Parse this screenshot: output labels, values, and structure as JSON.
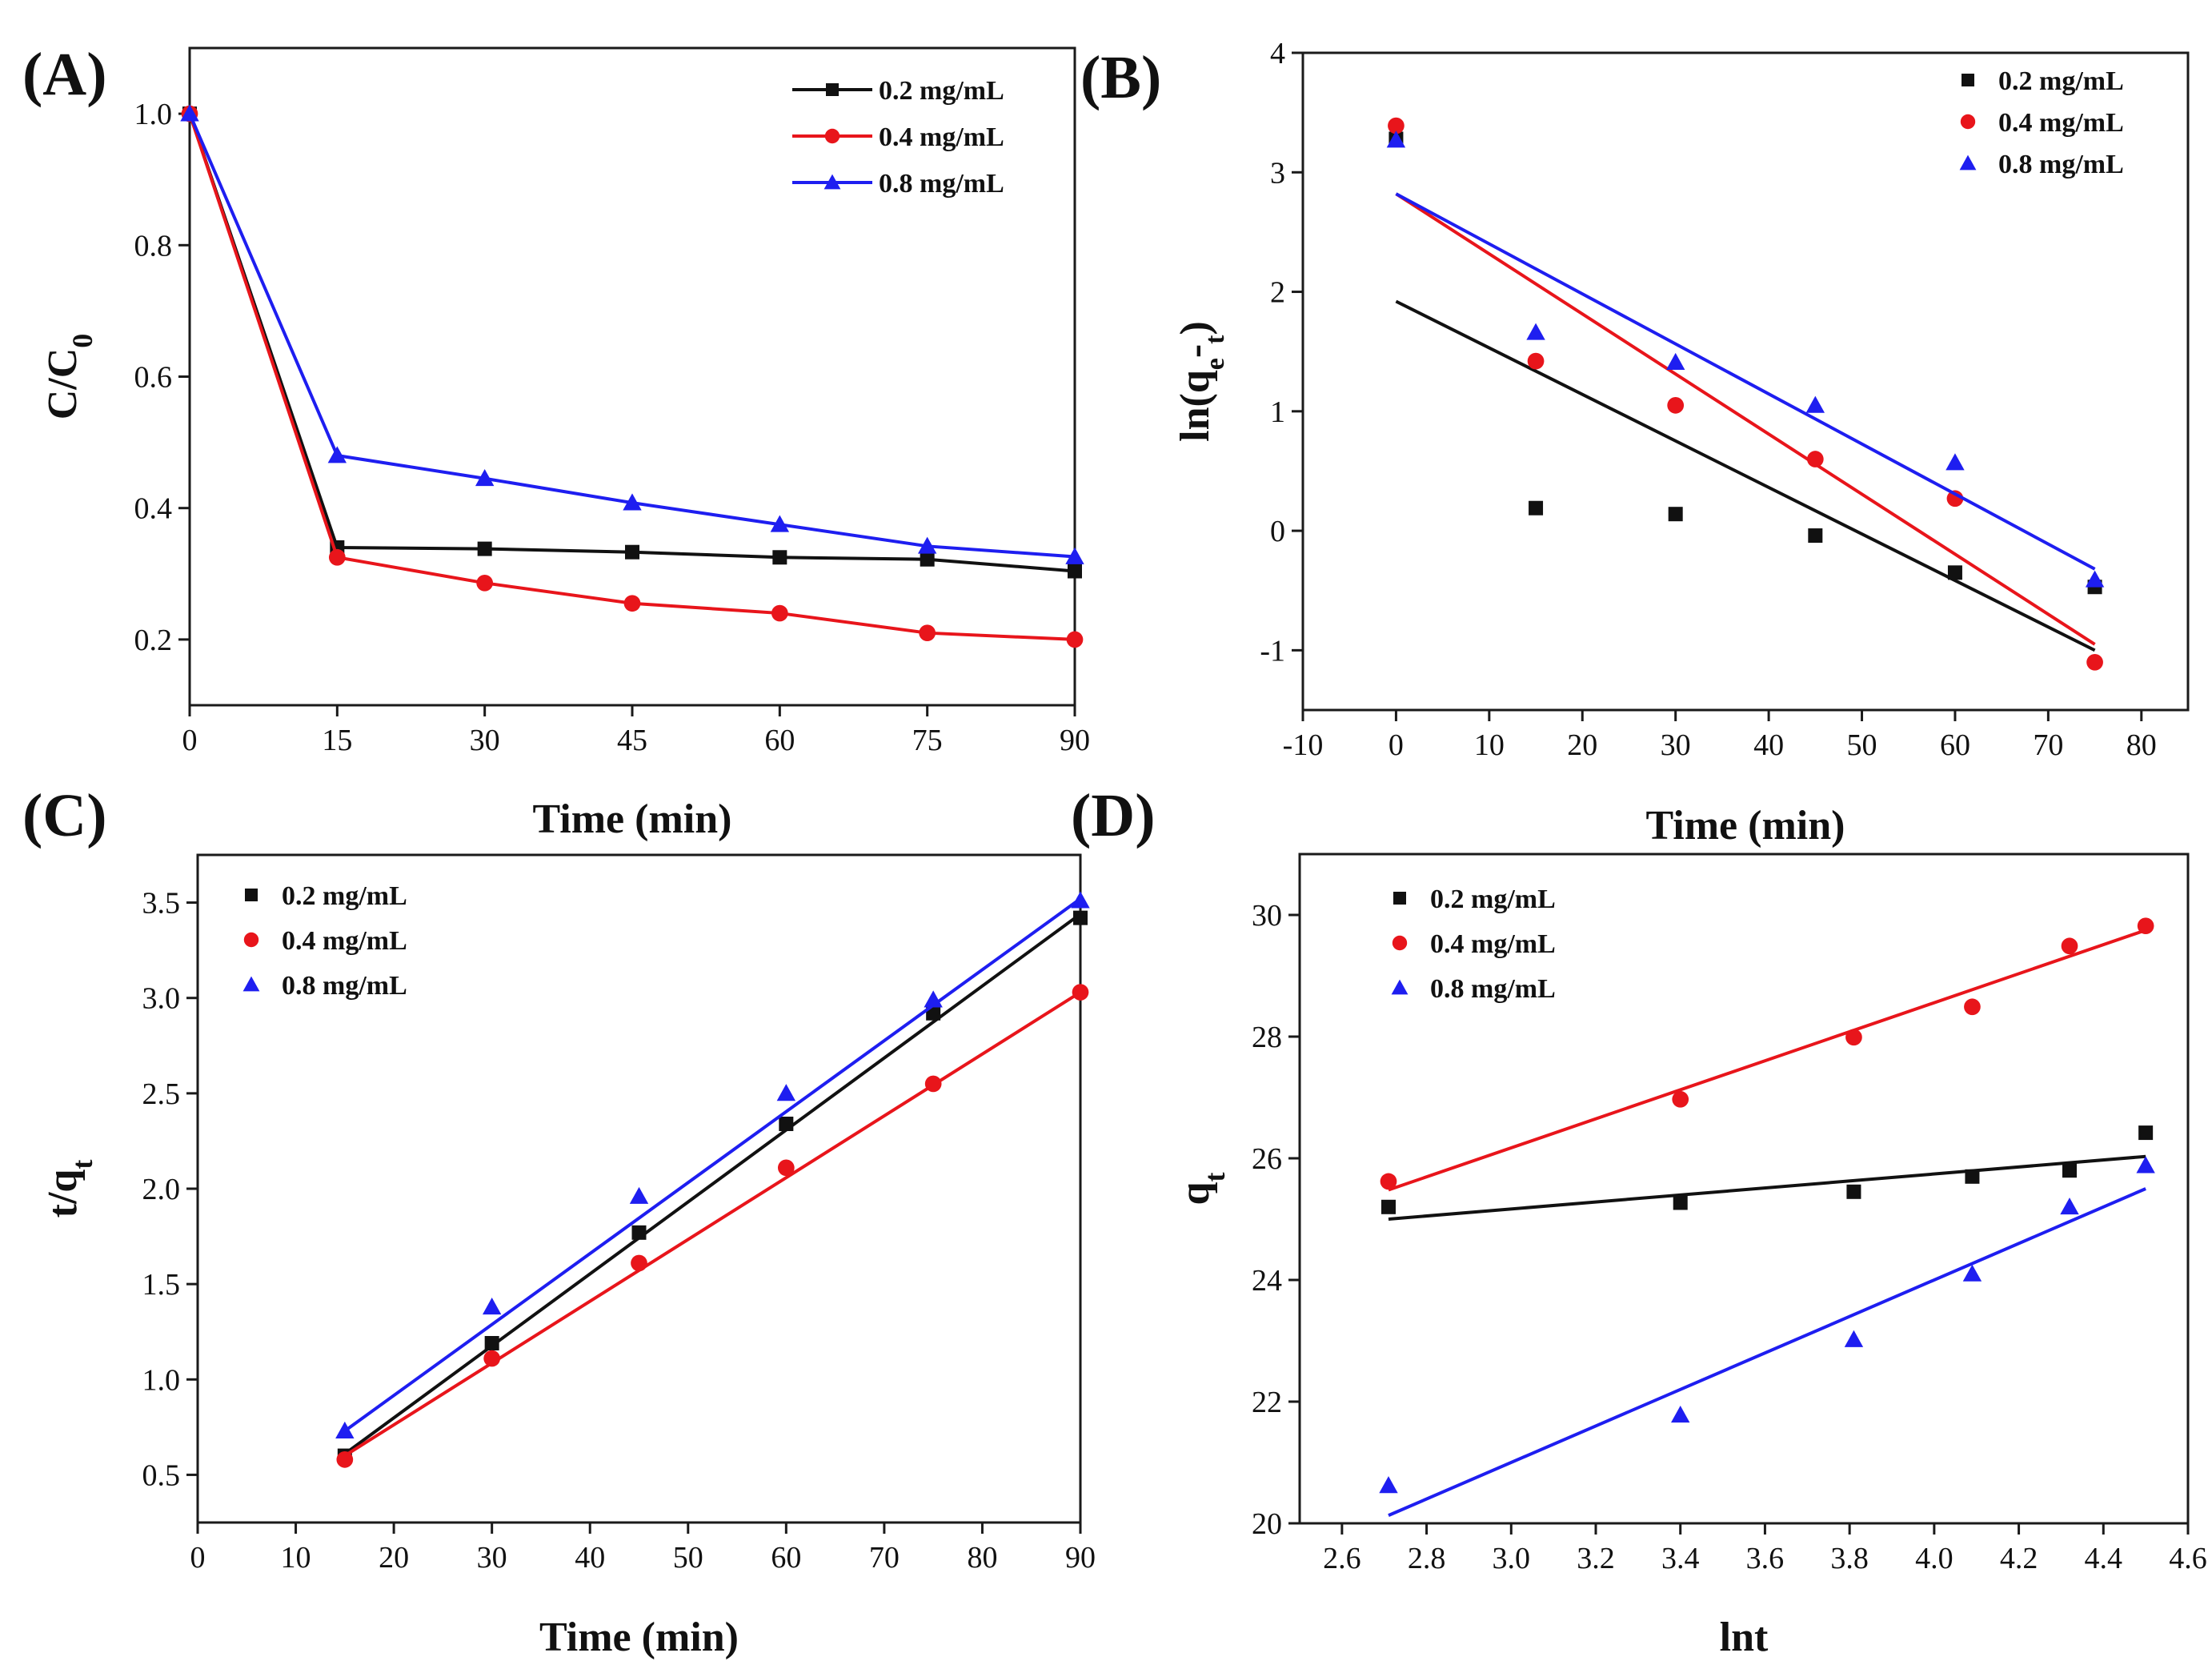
{
  "figure": {
    "colors": {
      "s1": "#111111",
      "s2": "#e8151b",
      "s3": "#1e1ef0"
    },
    "series_markers": [
      "square",
      "circle",
      "triangle"
    ]
  },
  "chart_data": [
    {
      "id": "A",
      "panel_label": "(A)",
      "type": "line",
      "xlabel": "Time (min)",
      "ylabel": "C/C",
      "ylabel_sub": "0",
      "xlim": [
        0,
        90
      ],
      "ylim": [
        0.1,
        1.1
      ],
      "xticks": [
        0,
        15,
        30,
        45,
        60,
        75,
        90
      ],
      "xtick_labels": [
        "0",
        "15",
        "30",
        "45",
        "60",
        "75",
        "90"
      ],
      "yticks": [
        0.2,
        0.4,
        0.6,
        0.8,
        1.0
      ],
      "ytick_labels": [
        "0.2",
        "0.4",
        "0.6",
        "0.8",
        "1.0"
      ],
      "legend": "top-right",
      "series": [
        {
          "name": "0.2 mg/mL",
          "x": [
            0,
            15,
            30,
            45,
            60,
            75,
            90
          ],
          "y": [
            1.0,
            0.34,
            0.338,
            0.333,
            0.325,
            0.322,
            0.304
          ]
        },
        {
          "name": "0.4 mg/mL",
          "x": [
            0,
            15,
            30,
            45,
            60,
            75,
            90
          ],
          "y": [
            1.0,
            0.325,
            0.286,
            0.255,
            0.24,
            0.21,
            0.2
          ]
        },
        {
          "name": "0.8 mg/mL",
          "x": [
            0,
            15,
            30,
            45,
            60,
            75,
            90
          ],
          "y": [
            1.0,
            0.48,
            0.445,
            0.408,
            0.375,
            0.342,
            0.326
          ]
        }
      ]
    },
    {
      "id": "B",
      "panel_label": "(B)",
      "type": "scatter",
      "xlabel": "Time (min)",
      "ylabel": "ln(q -q )",
      "ylabel_sub": [
        "e",
        "t"
      ],
      "xlim": [
        -10,
        85
      ],
      "ylim": [
        -1.5,
        4
      ],
      "xticks": [
        -10,
        0,
        10,
        20,
        30,
        40,
        50,
        60,
        70,
        80
      ],
      "xtick_labels": [
        "-10",
        "0",
        "10",
        "20",
        "30",
        "40",
        "50",
        "60",
        "70",
        "80"
      ],
      "yticks": [
        -1,
        0,
        1,
        2,
        3,
        4
      ],
      "ytick_labels": [
        "-1",
        "0",
        "1",
        "2",
        "3",
        "4"
      ],
      "legend": "top-right",
      "series": [
        {
          "name": "0.2 mg/mL",
          "x": [
            0,
            15,
            30,
            45,
            60,
            75
          ],
          "y": [
            3.28,
            0.19,
            0.14,
            -0.04,
            -0.35,
            -0.47
          ],
          "fit": [
            [
              0,
              1.92
            ],
            [
              75,
              -1.0
            ]
          ]
        },
        {
          "name": "0.4 mg/mL",
          "x": [
            0,
            15,
            30,
            45,
            60,
            75
          ],
          "y": [
            3.39,
            1.42,
            1.05,
            0.6,
            0.27,
            -1.1
          ],
          "fit": [
            [
              0,
              2.82
            ],
            [
              75,
              -0.95
            ]
          ]
        },
        {
          "name": "0.8 mg/mL",
          "x": [
            0,
            15,
            30,
            45,
            60,
            75
          ],
          "y": [
            3.27,
            1.66,
            1.41,
            1.05,
            0.57,
            -0.41
          ],
          "fit": [
            [
              0,
              2.82
            ],
            [
              75,
              -0.32
            ]
          ]
        }
      ]
    },
    {
      "id": "C",
      "panel_label": "(C)",
      "type": "scatter",
      "xlabel": "Time (min)",
      "ylabel": "t/q",
      "ylabel_sub": "t",
      "xlim": [
        0,
        90
      ],
      "ylim": [
        0.25,
        3.75
      ],
      "xticks": [
        0,
        10,
        20,
        30,
        40,
        50,
        60,
        70,
        80,
        90
      ],
      "xtick_labels": [
        "0",
        "10",
        "20",
        "30",
        "40",
        "50",
        "60",
        "70",
        "80",
        "90"
      ],
      "yticks": [
        0.5,
        1.0,
        1.5,
        2.0,
        2.5,
        3.0,
        3.5
      ],
      "ytick_labels": [
        "0.5",
        "1.0",
        "1.5",
        "2.0",
        "2.5",
        "3.0",
        "3.5"
      ],
      "legend": "top-left",
      "series": [
        {
          "name": "0.2 mg/mL",
          "x": [
            15,
            30,
            45,
            60,
            75,
            90
          ],
          "y": [
            0.6,
            1.19,
            1.77,
            2.34,
            2.92,
            3.42
          ],
          "fit": [
            [
              15,
              0.61
            ],
            [
              90,
              3.44
            ]
          ]
        },
        {
          "name": "0.4 mg/mL",
          "x": [
            15,
            30,
            45,
            60,
            75,
            90
          ],
          "y": [
            0.58,
            1.11,
            1.61,
            2.11,
            2.55,
            3.03
          ],
          "fit": [
            [
              15,
              0.6
            ],
            [
              90,
              3.03
            ]
          ]
        },
        {
          "name": "0.8 mg/mL",
          "x": [
            15,
            30,
            45,
            60,
            75,
            90
          ],
          "y": [
            0.73,
            1.38,
            1.96,
            2.5,
            2.99,
            3.51
          ],
          "fit": [
            [
              15,
              0.73
            ],
            [
              90,
              3.52
            ]
          ]
        }
      ]
    },
    {
      "id": "D",
      "panel_label": "(D)",
      "type": "scatter",
      "xlabel": "lnt",
      "ylabel": "q",
      "ylabel_sub": "t",
      "xlim": [
        2.5,
        4.6
      ],
      "ylim": [
        20,
        31
      ],
      "xticks": [
        2.6,
        2.8,
        3.0,
        3.2,
        3.4,
        3.6,
        3.8,
        4.0,
        4.2,
        4.4,
        4.6
      ],
      "xtick_labels": [
        "2.6",
        "2.8",
        "3.0",
        "3.2",
        "3.4",
        "3.6",
        "3.8",
        "4.0",
        "4.2",
        "4.4",
        "4.6"
      ],
      "yticks": [
        20,
        22,
        24,
        26,
        28,
        30
      ],
      "ytick_labels": [
        "20",
        "22",
        "24",
        "26",
        "28",
        "30"
      ],
      "legend": "top-left",
      "series": [
        {
          "name": "0.2 mg/mL",
          "x": [
            2.71,
            3.4,
            3.81,
            4.09,
            4.32,
            4.5
          ],
          "y": [
            25.2,
            25.27,
            25.45,
            25.7,
            25.8,
            26.42
          ],
          "fit": [
            [
              2.71,
              25.0
            ],
            [
              4.5,
              26.03
            ]
          ]
        },
        {
          "name": "0.4 mg/mL",
          "x": [
            2.71,
            3.4,
            3.81,
            4.09,
            4.32,
            4.5
          ],
          "y": [
            25.62,
            26.97,
            27.99,
            28.49,
            29.49,
            29.82
          ],
          "fit": [
            [
              2.71,
              25.48
            ],
            [
              4.5,
              29.75
            ]
          ]
        },
        {
          "name": "0.8 mg/mL",
          "x": [
            2.71,
            3.4,
            3.81,
            4.09,
            4.32,
            4.5
          ],
          "y": [
            20.62,
            21.78,
            23.02,
            24.1,
            25.2,
            25.88
          ],
          "fit": [
            [
              2.71,
              20.13
            ],
            [
              4.5,
              25.5
            ]
          ]
        }
      ]
    }
  ]
}
